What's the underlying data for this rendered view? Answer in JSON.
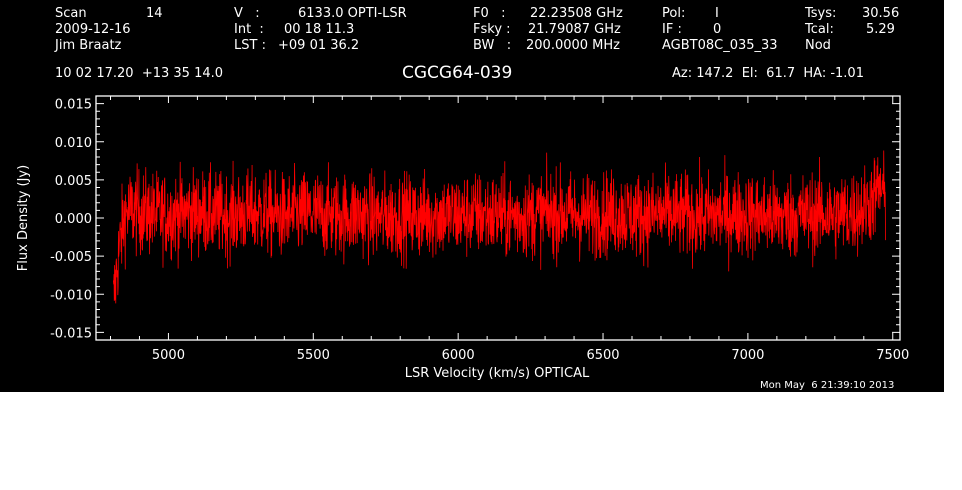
{
  "header": {
    "scan_label": "Scan",
    "scan_value": "14",
    "date": "2009-12-16",
    "observer": "Jim Braatz",
    "ra_dec": "10 02 17.20  +13 35 14.0",
    "v_label": "V   :",
    "v_value": "6133.0 OPTI-LSR",
    "int_label": "Int  :",
    "int_value": "00 18 11.3",
    "lst_label": "LST :",
    "lst_value": "+09 01 36.2",
    "f0_label": "F0   :",
    "f0_value": "22.23508 GHz",
    "fsky_label": "Fsky :",
    "fsky_value": "21.79087 GHz",
    "bw_label": "BW   :",
    "bw_value": "200.0000 MHz",
    "pol_label": "Pol:",
    "pol_value": "I",
    "if_label": "IF :",
    "if_value": "0",
    "project": "AGBT08C_035_33",
    "tsys_label": "Tsys:",
    "tsys_value": "30.56",
    "tcal_label": "Tcal:",
    "tcal_value": "5.29",
    "mode": "Nod",
    "az_el_ha": "Az: 147.2  El:  61.7  HA: -1.01",
    "timestamp": "Mon May  6 21:39:10 2013"
  },
  "colors": {
    "background": "#000000",
    "axes": "#ffffff",
    "series": "#ff0000"
  },
  "chart_data": {
    "type": "line",
    "title": "CGCG64-039",
    "xlabel": "LSR Velocity (km/s) OPTICAL",
    "ylabel": "Flux Density (Jy)",
    "xlim": [
      4750,
      7525
    ],
    "ylim": [
      -0.016,
      0.016
    ],
    "x_ticks": [
      5000,
      5500,
      6000,
      6500,
      7000,
      7500
    ],
    "x_tick_labels": [
      "5000",
      "5500",
      "6000",
      "6500",
      "7000",
      "7500"
    ],
    "y_ticks": [
      -0.015,
      -0.01,
      -0.005,
      0.0,
      0.005,
      0.01,
      0.015
    ],
    "y_tick_labels": [
      "-0.015",
      "-0.010",
      "-0.005",
      "0.000",
      "0.005",
      "0.010",
      "0.015"
    ],
    "grid": false,
    "series": [
      {
        "x": [
          4810,
          4830,
          4850,
          4875,
          4900,
          4950,
          5000,
          5050,
          5100,
          5150,
          5200,
          5250,
          5300,
          5350,
          5400,
          5450,
          5500,
          5550,
          5600,
          5650,
          5700,
          5750,
          5800,
          5850,
          5900,
          5950,
          6000,
          6050,
          6100,
          6150,
          6200,
          6250,
          6300,
          6350,
          6400,
          6450,
          6500,
          6550,
          6600,
          6650,
          6700,
          6750,
          6800,
          6850,
          6900,
          6950,
          7000,
          7050,
          7100,
          7150,
          7200,
          7250,
          7300,
          7350,
          7400,
          7430,
          7460,
          7475
        ],
        "y": [
          -0.011,
          -0.004,
          0.0005,
          0.001,
          0.0008,
          0.0005,
          0.0004,
          0.0006,
          0.0008,
          0.0005,
          0.0003,
          0.0005,
          0.0007,
          0.0004,
          0.0002,
          0.0005,
          0.0006,
          0.0004,
          0.0003,
          0.0005,
          0.0002,
          0.0001,
          0.0003,
          0.0002,
          0.0003,
          0.0004,
          0.0003,
          0.0005,
          0.0004,
          0.0003,
          0.0002,
          0.0004,
          0.0005,
          0.0006,
          0.0004,
          0.0003,
          0.0005,
          0.0006,
          0.0004,
          0.0003,
          0.0005,
          0.0004,
          0.0003,
          0.0002,
          0.0004,
          0.0005,
          0.0004,
          0.0003,
          0.0002,
          0.0003,
          0.0004,
          0.0005,
          0.0004,
          0.0006,
          0.0012,
          0.0025,
          0.004,
          0.002
        ],
        "noise_sigma": 0.0028
      }
    ]
  }
}
